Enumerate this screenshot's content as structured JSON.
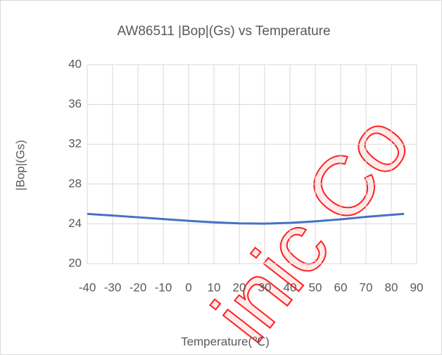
{
  "chart_data": {
    "type": "line",
    "title": "AW86511 |Bop|(Gs) vs Temperature",
    "x_label": "Temperature(℃)",
    "y_label": "|Bop|(Gs)",
    "watermark": "inic Co",
    "x": [
      -40,
      -30,
      -20,
      -10,
      0,
      10,
      20,
      30,
      40,
      50,
      60,
      70,
      80,
      85
    ],
    "series": [
      {
        "name": "|Bop|(Gs)",
        "color": "#4472c4",
        "values": [
          25,
          24.83,
          24.66,
          24.48,
          24.3,
          24.15,
          24.05,
          24.02,
          24.1,
          24.25,
          24.45,
          24.7,
          24.9,
          25
        ]
      }
    ],
    "xlim": [
      -40,
      90
    ],
    "xticks": [
      -40,
      -30,
      -20,
      -10,
      0,
      10,
      20,
      30,
      40,
      50,
      60,
      70,
      80,
      90
    ],
    "ylim": [
      20,
      40
    ],
    "yticks": [
      20,
      24,
      28,
      32,
      36,
      40
    ],
    "grid": true
  }
}
